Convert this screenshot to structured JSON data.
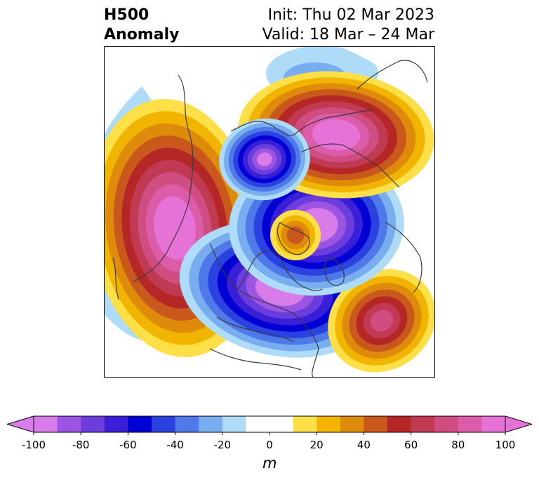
{
  "title": {
    "line1": "H500",
    "line2": "Anomaly",
    "init": "Init: Thu 02 Mar 2023",
    "valid": "Valid: 18 Mar – 24 Mar"
  },
  "colorbar": {
    "unit": "m",
    "range": [
      -100,
      100
    ],
    "step": 10,
    "extend": "both",
    "ticks": [
      "-100",
      "-80",
      "-60",
      "-40",
      "-20",
      "0",
      "20",
      "40",
      "60",
      "80",
      "100"
    ],
    "colors": [
      "#d77ce8",
      "#9c55e3",
      "#6b3ddc",
      "#3a1fd9",
      "#0000d4",
      "#2a42e0",
      "#4f78e8",
      "#78adf0",
      "#aedcf8",
      "#ffffff",
      "#ffffff",
      "#fde047",
      "#f1b400",
      "#de8b0c",
      "#c8581b",
      "#b52727",
      "#bf3a52",
      "#cf4d80",
      "#db5ca8",
      "#e672d8"
    ],
    "under_color": "#d77ce8",
    "over_color": "#e672d8"
  },
  "map": {
    "projection": "polar-stereographic",
    "region": "northern-hemisphere",
    "field": "500 hPa height anomaly",
    "features": [
      {
        "label": "positive-anomaly-western-north-america-pacific",
        "sign": "positive",
        "peak_m": 100
      },
      {
        "label": "negative-anomaly-central-north-america",
        "sign": "negative",
        "peak_m": -100
      },
      {
        "label": "positive-anomaly-north-atlantic",
        "sign": "positive",
        "peak_m": 70
      },
      {
        "label": "negative-anomaly-northern-europe",
        "sign": "negative",
        "peak_m": -100
      },
      {
        "label": "positive-anomaly-siberia",
        "sign": "positive",
        "peak_m": 100
      },
      {
        "label": "negative-anomaly-east-siberian-sea",
        "sign": "negative",
        "peak_m": -90
      },
      {
        "label": "positive-anomaly-greenland",
        "sign": "positive",
        "peak_m": 40
      }
    ]
  }
}
